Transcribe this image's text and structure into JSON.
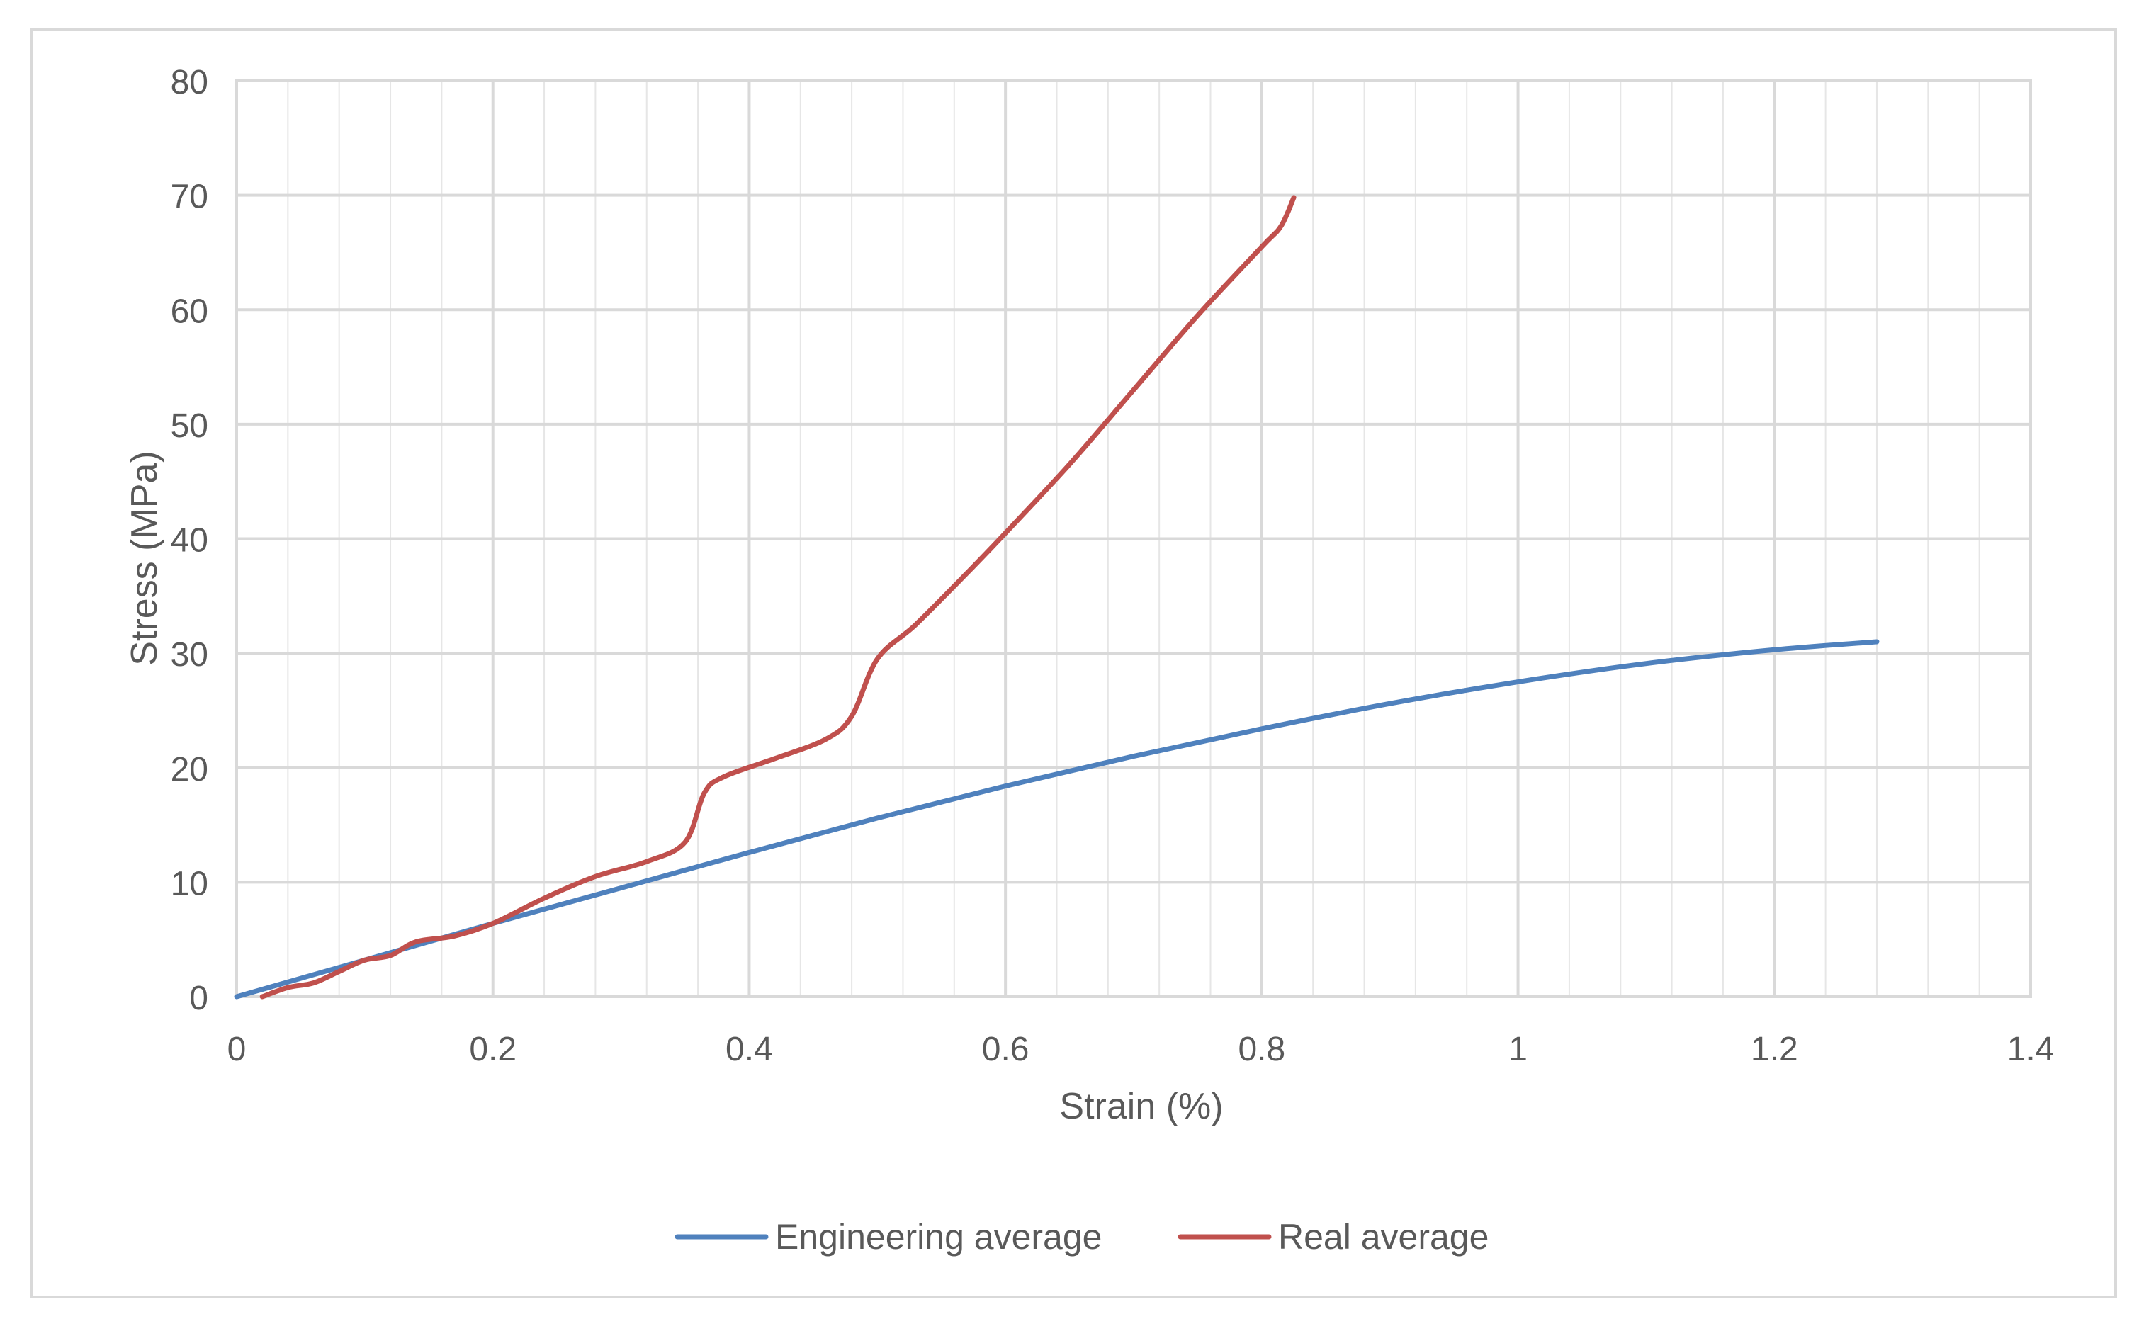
{
  "chart_data": {
    "type": "line",
    "title": "",
    "xlabel": "Strain (%)",
    "ylabel": "Stress (MPa)",
    "xlim": [
      0,
      1.4
    ],
    "ylim": [
      0,
      80
    ],
    "x_major_ticks": [
      0,
      0.2,
      0.4,
      0.6,
      0.8,
      1,
      1.2,
      1.4
    ],
    "x_tick_labels": [
      "0",
      "0.2",
      "0.4",
      "0.6",
      "0.8",
      "1",
      "1.2",
      "1.4"
    ],
    "y_major_ticks": [
      0,
      10,
      20,
      30,
      40,
      50,
      60,
      70,
      80
    ],
    "y_tick_labels": [
      "0",
      "10",
      "20",
      "30",
      "40",
      "50",
      "60",
      "70",
      "80"
    ],
    "x_minor_step": 0.04,
    "grid": true,
    "legend_position": "bottom",
    "series": [
      {
        "name": "Engineering average",
        "color": "#4f81bd",
        "x": [
          0,
          0.1,
          0.2,
          0.3,
          0.4,
          0.5,
          0.6,
          0.7,
          0.8,
          0.9,
          1.0,
          1.1,
          1.2,
          1.28
        ],
        "y": [
          0,
          3.2,
          6.4,
          9.5,
          12.6,
          15.6,
          18.4,
          21.0,
          23.4,
          25.6,
          27.5,
          29.1,
          30.3,
          31.0
        ]
      },
      {
        "name": "Real average",
        "color": "#c0504d",
        "x": [
          0.02,
          0.04,
          0.06,
          0.08,
          0.1,
          0.12,
          0.14,
          0.17,
          0.2,
          0.24,
          0.28,
          0.32,
          0.35,
          0.365,
          0.38,
          0.42,
          0.46,
          0.48,
          0.5,
          0.53,
          0.57,
          0.6,
          0.65,
          0.7,
          0.75,
          0.8,
          0.815,
          0.825
        ],
        "y": [
          0,
          0.8,
          1.2,
          2.2,
          3.2,
          3.6,
          4.8,
          5.3,
          6.4,
          8.6,
          10.5,
          11.8,
          13.5,
          17.8,
          19.2,
          20.8,
          22.5,
          24.5,
          29.5,
          32.5,
          37.0,
          40.5,
          46.5,
          53.0,
          59.5,
          65.5,
          67.3,
          69.8
        ]
      }
    ]
  }
}
